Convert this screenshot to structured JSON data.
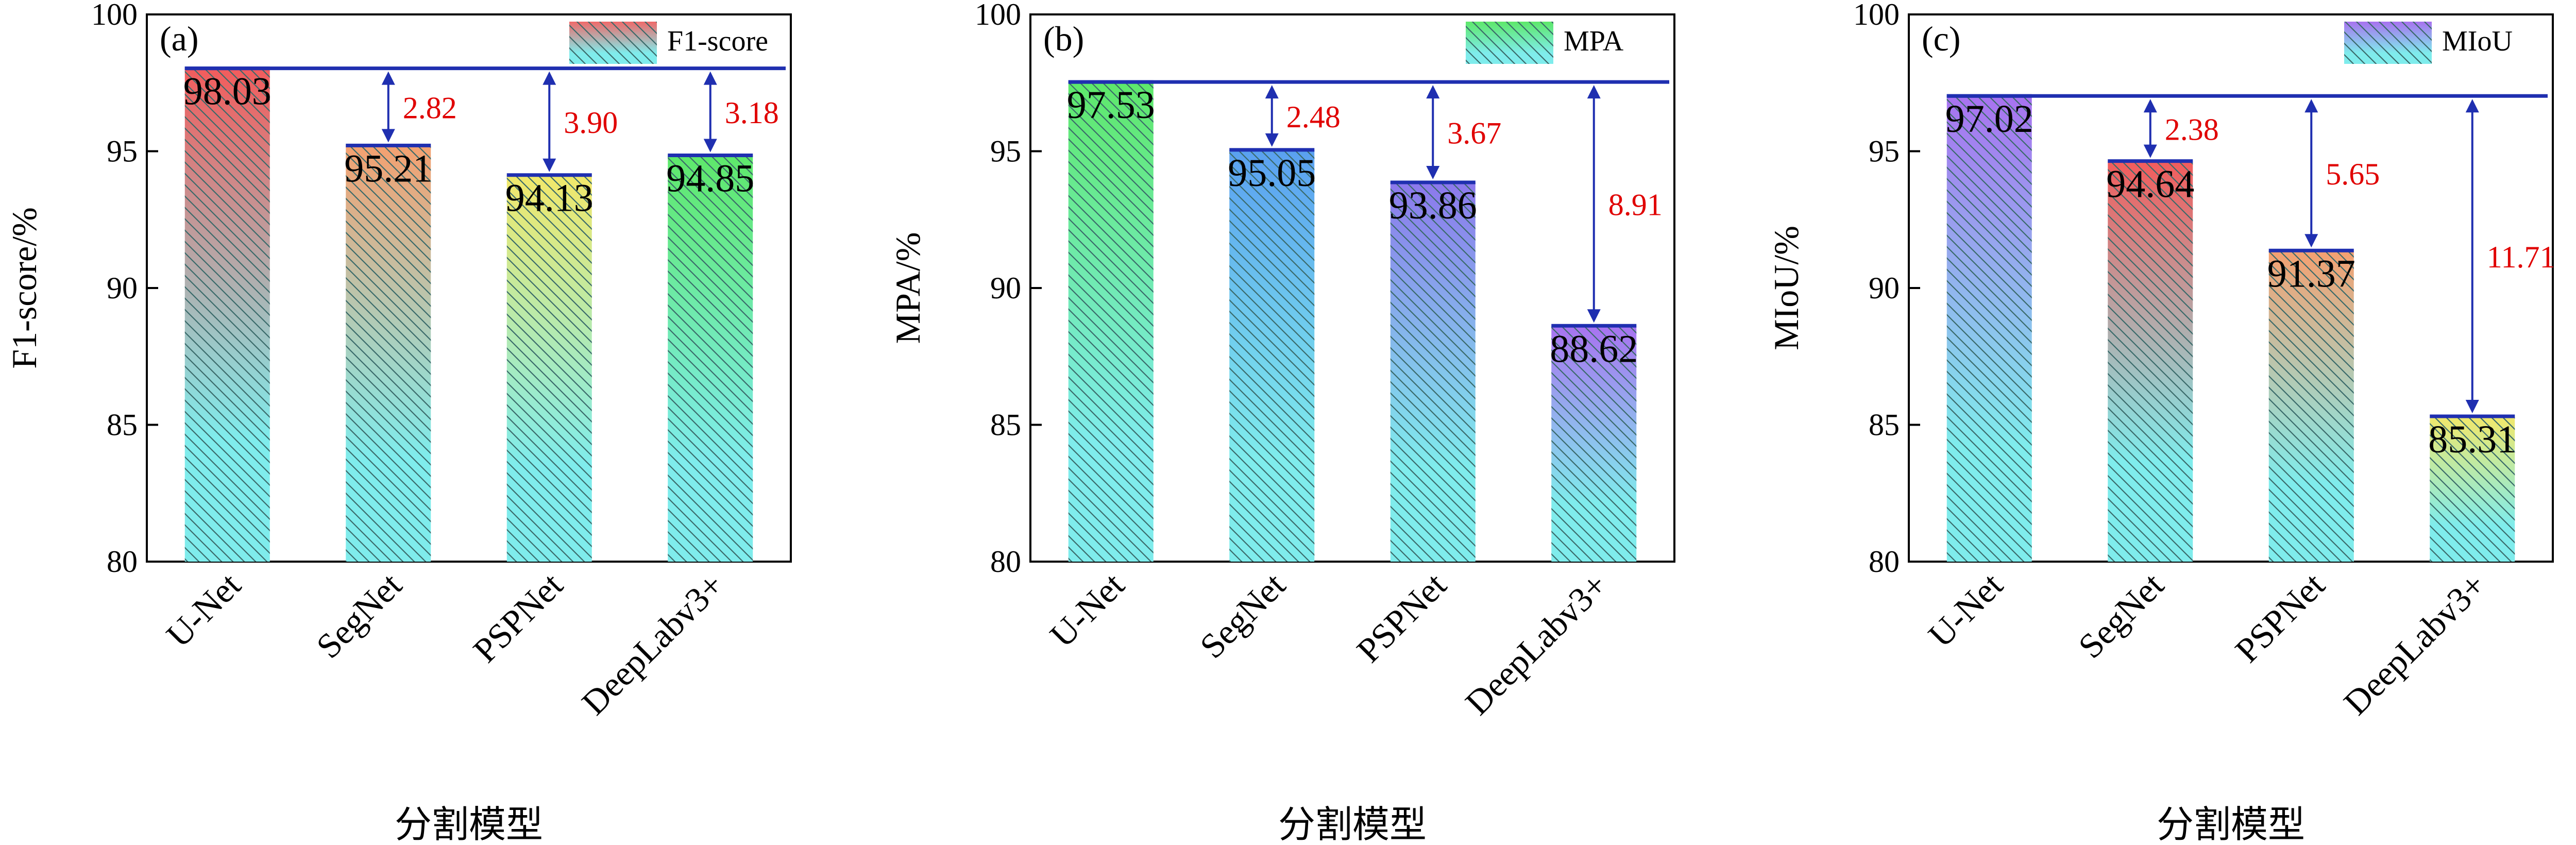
{
  "chart_data": [
    {
      "type": "bar",
      "panel_label": "(a)",
      "categories": [
        "U-Net",
        "SegNet",
        "PSPNet",
        "DeepLabv3+"
      ],
      "values": [
        98.03,
        95.21,
        94.13,
        94.85
      ],
      "value_labels": [
        "98.03",
        "95.21",
        "94.13",
        "94.85"
      ],
      "differences": [
        "",
        "2.82",
        "3.90",
        "3.18"
      ],
      "ylabel": "F1-score/%",
      "xlabel": "分割模型",
      "ylim": [
        80,
        100
      ],
      "yticks": [
        "80",
        "85",
        "90",
        "95",
        "100"
      ],
      "legend": "F1-score",
      "reference_value": 98.03
    },
    {
      "type": "bar",
      "panel_label": "(b)",
      "categories": [
        "U-Net",
        "SegNet",
        "PSPNet",
        "DeepLabv3+"
      ],
      "values": [
        97.53,
        95.05,
        93.86,
        88.62
      ],
      "value_labels": [
        "97.53",
        "95.05",
        "93.86",
        "88.62"
      ],
      "differences": [
        "",
        "2.48",
        "3.67",
        "8.91"
      ],
      "ylabel": "MPA/%",
      "xlabel": "分割模型",
      "ylim": [
        80,
        100
      ],
      "yticks": [
        "80",
        "85",
        "90",
        "95",
        "100"
      ],
      "legend": "MPA",
      "reference_value": 97.53
    },
    {
      "type": "bar",
      "panel_label": "(c)",
      "categories": [
        "U-Net",
        "SegNet",
        "PSPNet",
        "DeepLabv3+"
      ],
      "values": [
        97.02,
        94.64,
        91.37,
        85.31
      ],
      "value_labels": [
        "97.02",
        "94.64",
        "91.37",
        "85.31"
      ],
      "differences": [
        "",
        "2.38",
        "5.65",
        "11.71"
      ],
      "ylabel": "MIoU/%",
      "xlabel": "分割模型",
      "ylim": [
        80,
        100
      ],
      "yticks": [
        "80",
        "85",
        "90",
        "95",
        "100"
      ],
      "legend": "MIoU",
      "reference_value": 97.02
    }
  ],
  "colors": {
    "bar_bottom": "#7FECEC",
    "hatch": "#3a6a6a",
    "bar_edge": "#1f2fb0",
    "reference_line": "#1f2fb0",
    "arrow": "#1f2fb0",
    "difference_text": "#e00000",
    "panels": [
      {
        "legend": "#f06a6a",
        "bars": [
          "#f25c5c",
          "#f4a070",
          "#f2e86a",
          "#5ee86a"
        ]
      },
      {
        "legend": "#5ee86a",
        "bars": [
          "#5ee86a",
          "#5aa0f0",
          "#8c78ec",
          "#a872f0"
        ]
      },
      {
        "legend": "#a872f0",
        "bars": [
          "#a872f0",
          "#f25c5c",
          "#f4a070",
          "#f2e86a"
        ]
      }
    ]
  }
}
